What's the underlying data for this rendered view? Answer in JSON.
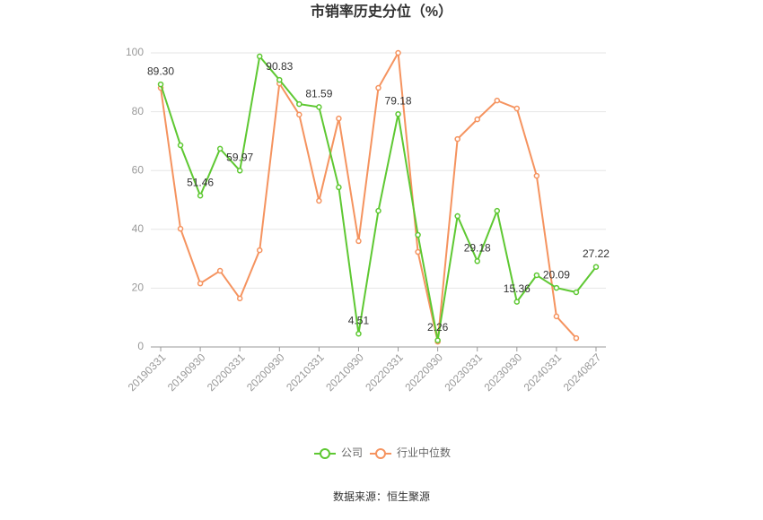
{
  "chart_data": {
    "type": "line",
    "title": "市销率历史分位（%）",
    "categories": [
      "20190331",
      null,
      "20190930",
      null,
      "20200331",
      null,
      "20200930",
      null,
      "20210331",
      null,
      "20210930",
      null,
      "20220331",
      null,
      "20220930",
      null,
      "20230331",
      null,
      "20230930",
      null,
      "20240331",
      null,
      "20240827"
    ],
    "series": [
      {
        "name": "公司",
        "color": "#5ec832",
        "values": [
          89.3,
          68.6,
          51.46,
          67.4,
          59.97,
          98.8,
          90.83,
          82.6,
          81.59,
          54.3,
          4.51,
          46.3,
          79.18,
          38.1,
          2.26,
          44.5,
          29.18,
          46.3,
          15.36,
          24.4,
          20.09,
          18.6,
          27.22
        ],
        "value_labels": [
          "89.30",
          null,
          "51.46",
          null,
          "59.97",
          null,
          "90.83",
          null,
          "81.59",
          null,
          "4.51",
          null,
          "79.18",
          null,
          "2.26",
          null,
          "29.18",
          null,
          "15.36",
          null,
          "20.09",
          null,
          "27.22"
        ]
      },
      {
        "name": "行业中位数",
        "color": "#f5935f",
        "values": [
          88.1,
          40.2,
          21.6,
          25.9,
          16.5,
          32.9,
          89.6,
          79,
          49.7,
          77.7,
          36,
          88.1,
          100,
          32.3,
          1.8,
          70.7,
          77.4,
          83.8,
          81.1,
          58.2,
          10.4,
          3.0,
          null
        ]
      }
    ],
    "ylim": [
      0,
      100
    ],
    "yticks": [
      0,
      20,
      40,
      60,
      80,
      100
    ],
    "grid": true,
    "source": "数据来源：恒生聚源"
  }
}
